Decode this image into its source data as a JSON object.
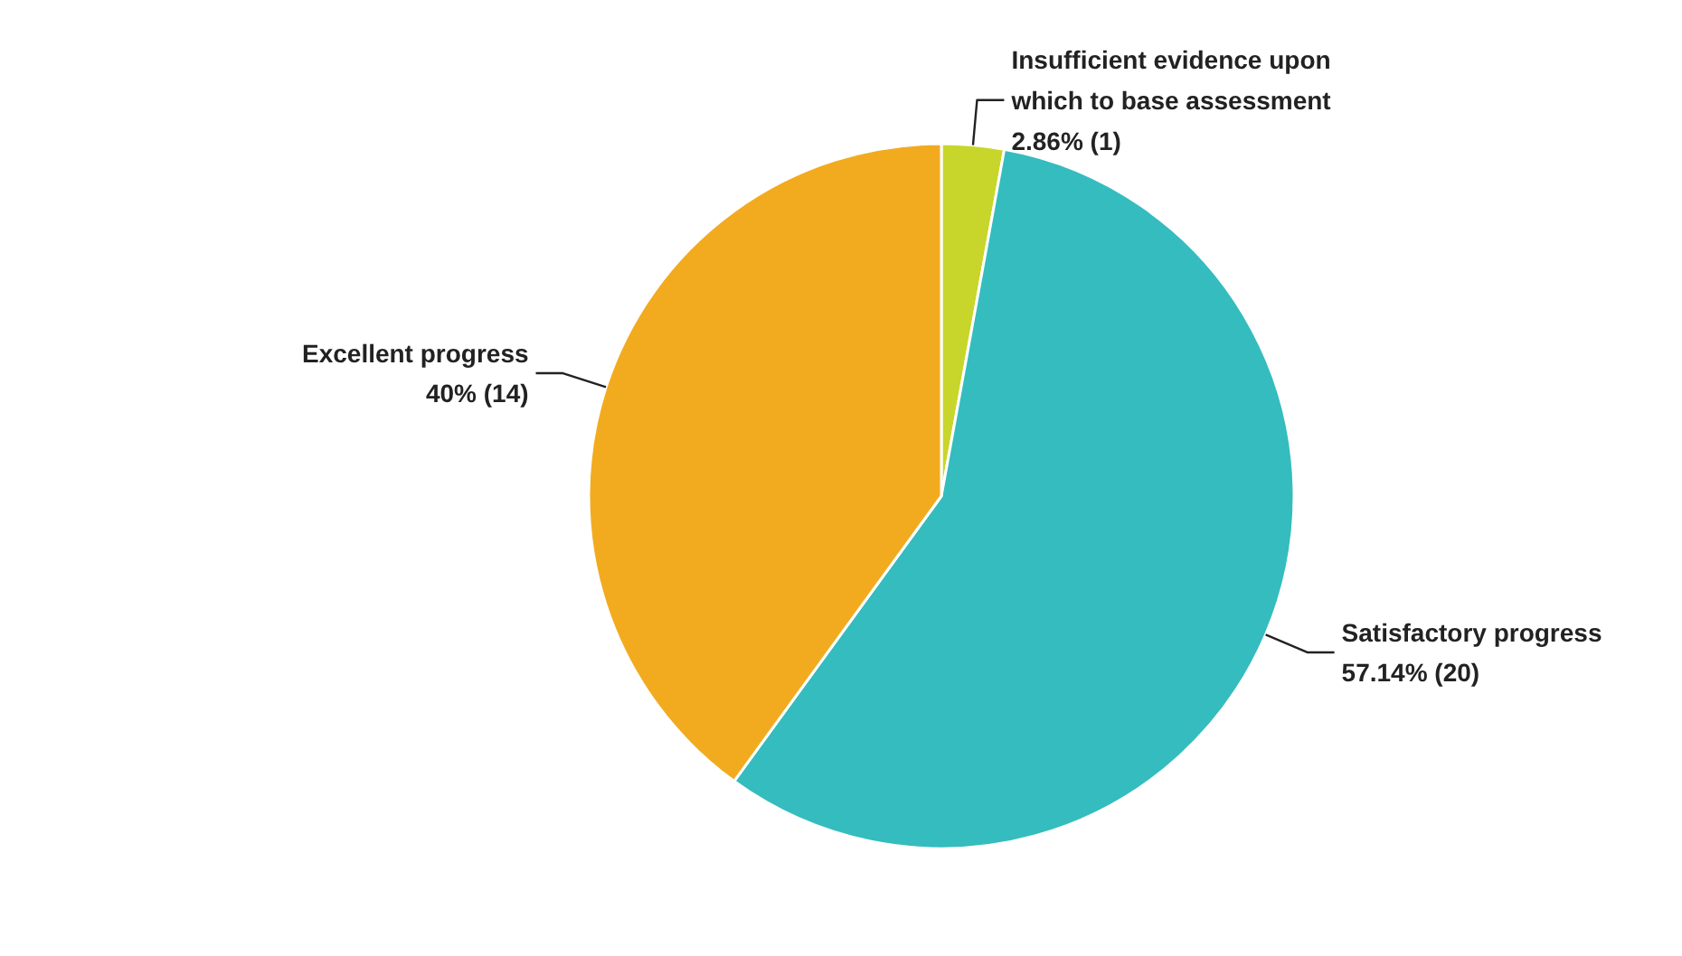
{
  "chart_data": {
    "type": "pie",
    "categories": [
      "Insufficient evidence upon which to base assessment",
      "Satisfactory progress",
      "Excellent progress"
    ],
    "values": [
      1,
      20,
      14
    ],
    "value_labels": [
      "2.86% (1)",
      "57.14% (20)",
      "40% (14)"
    ],
    "colors": [
      "#c8d62b",
      "#35bcbf",
      "#f2ab1f"
    ]
  }
}
